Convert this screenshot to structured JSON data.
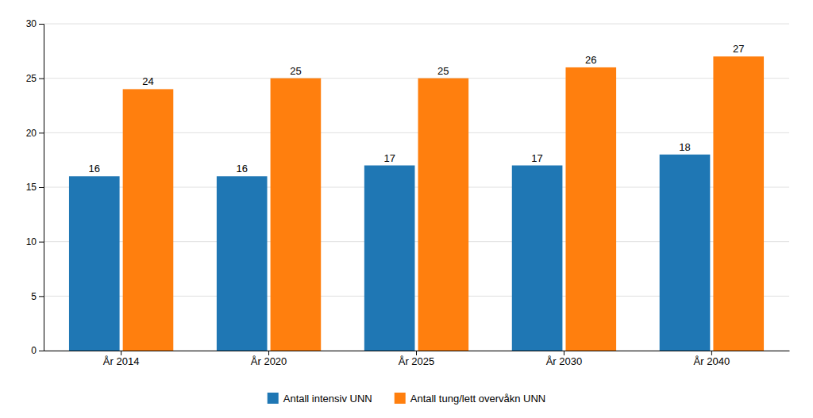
{
  "chart_data": {
    "type": "bar",
    "categories": [
      "År 2014",
      "År 2020",
      "År 2025",
      "År 2030",
      "År 2040"
    ],
    "series": [
      {
        "name": "Antall intensiv UNN",
        "values": [
          16,
          16,
          17,
          17,
          18
        ]
      },
      {
        "name": "Antall tung/lett overvåkn UNN",
        "values": [
          24,
          25,
          25,
          26,
          27
        ]
      }
    ],
    "ylim": [
      0,
      30
    ],
    "yticks": [
      0,
      5,
      10,
      15,
      20,
      25,
      30
    ],
    "grid": true,
    "legend": "bottom",
    "data_labels": true
  }
}
